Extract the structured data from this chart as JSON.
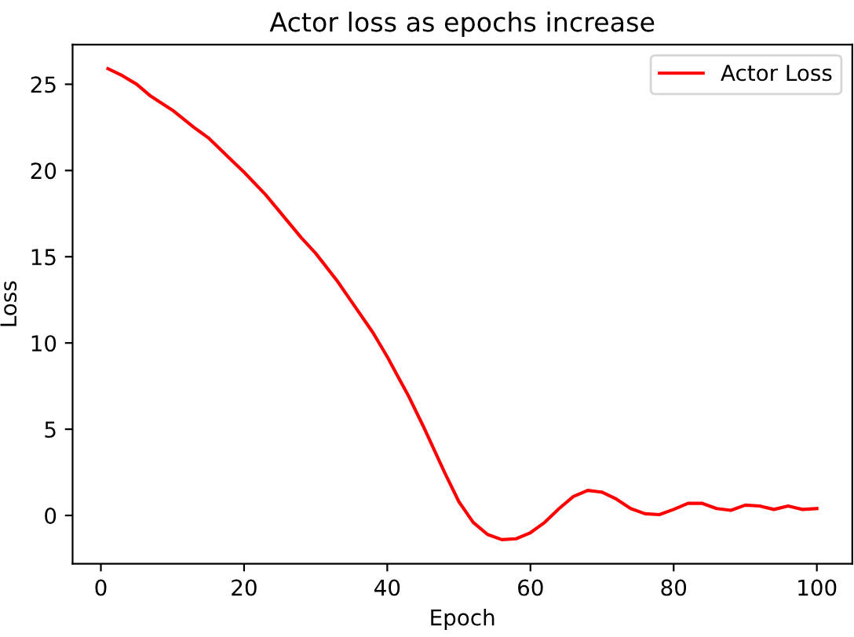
{
  "chart_data": {
    "type": "line",
    "title": "Actor loss as epochs increase",
    "xlabel": "Epoch",
    "ylabel": "Loss",
    "x": [
      1,
      3,
      5,
      7,
      10,
      13,
      15,
      18,
      20,
      23,
      25,
      28,
      30,
      33,
      35,
      38,
      40,
      43,
      45,
      48,
      50,
      52,
      54,
      56,
      58,
      60,
      62,
      64,
      66,
      68,
      70,
      72,
      74,
      76,
      78,
      80,
      82,
      84,
      86,
      88,
      90,
      92,
      94,
      96,
      98,
      100
    ],
    "series": [
      {
        "name": "Actor Loss",
        "color": "#ff0000",
        "values": [
          25.9,
          25.5,
          25.0,
          24.3,
          23.5,
          22.5,
          21.9,
          20.7,
          19.9,
          18.6,
          17.6,
          16.1,
          15.2,
          13.6,
          12.4,
          10.6,
          9.2,
          6.9,
          5.2,
          2.5,
          0.8,
          -0.4,
          -1.1,
          -1.4,
          -1.35,
          -1.0,
          -0.4,
          0.4,
          1.1,
          1.45,
          1.35,
          0.95,
          0.4,
          0.1,
          0.05,
          0.35,
          0.7,
          0.7,
          0.4,
          0.3,
          0.6,
          0.55,
          0.35,
          0.55,
          0.35,
          0.4
        ]
      }
    ],
    "xlim": [
      -3.95,
      104.95
    ],
    "ylim": [
      -2.8,
      27.3
    ],
    "xticks": [
      0,
      20,
      40,
      60,
      80,
      100
    ],
    "yticks": [
      0,
      5,
      10,
      15,
      20,
      25
    ],
    "legend": "top right",
    "grid": false
  }
}
